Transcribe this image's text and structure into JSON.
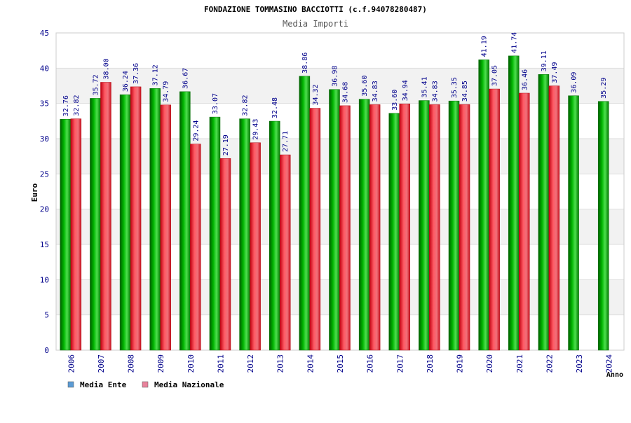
{
  "chart_data": {
    "type": "bar",
    "title": "FONDAZIONE TOMMASINO BACCIOTTI (c.f.94078280487)",
    "subtitle": "Media Importi",
    "ylabel": "Euro",
    "xlabel": "Anno",
    "ylim": [
      0,
      45
    ],
    "ytick_step": 5,
    "categories": [
      "2006",
      "2007",
      "2008",
      "2009",
      "2010",
      "2011",
      "2012",
      "2013",
      "2014",
      "2015",
      "2016",
      "2017",
      "2018",
      "2019",
      "2020",
      "2021",
      "2022",
      "2023",
      "2024"
    ],
    "series": [
      {
        "name": "Media Ente",
        "legend_color": "#5b9bd5",
        "bar_color": "#00a000",
        "values": [
          32.76,
          35.72,
          36.24,
          37.12,
          36.67,
          33.07,
          32.82,
          32.48,
          38.86,
          36.98,
          35.6,
          33.6,
          35.41,
          35.35,
          41.19,
          41.74,
          39.11,
          36.09,
          35.29
        ],
        "labels": [
          "32.76",
          "35.72",
          "36.24",
          "37.12",
          "36.67",
          "33.07",
          "32.82",
          "32.48",
          "38.86",
          "36.98",
          "35.60",
          "33.60",
          "35.41",
          "35.35",
          "41.19",
          "41.74",
          "39.11",
          "36.09",
          "35.29"
        ]
      },
      {
        "name": "Media Nazionale",
        "legend_color": "#e8829b",
        "bar_color": "#e0202a",
        "values": [
          32.82,
          38.0,
          37.36,
          34.79,
          29.24,
          27.19,
          29.43,
          27.71,
          34.32,
          34.68,
          34.83,
          34.94,
          34.83,
          34.85,
          37.05,
          36.46,
          37.49,
          null,
          null
        ],
        "labels": [
          "32.82",
          "38.00",
          "37.36",
          "34.79",
          "29.24",
          "27.19",
          "29.43",
          "27.71",
          "34.32",
          "34.68",
          "34.83",
          "34.94",
          "34.83",
          "34.85",
          "37.05",
          "36.46",
          "37.49",
          null,
          null
        ]
      }
    ],
    "grid": true,
    "legend_position": "bottom-left"
  },
  "colors": {
    "title_text": "#000000",
    "subtitle_text": "#555555",
    "axis_text": "#00008b",
    "value_label_text": "#00008b",
    "band_alt": "#f2f2f2",
    "grid": "#dddddd"
  }
}
